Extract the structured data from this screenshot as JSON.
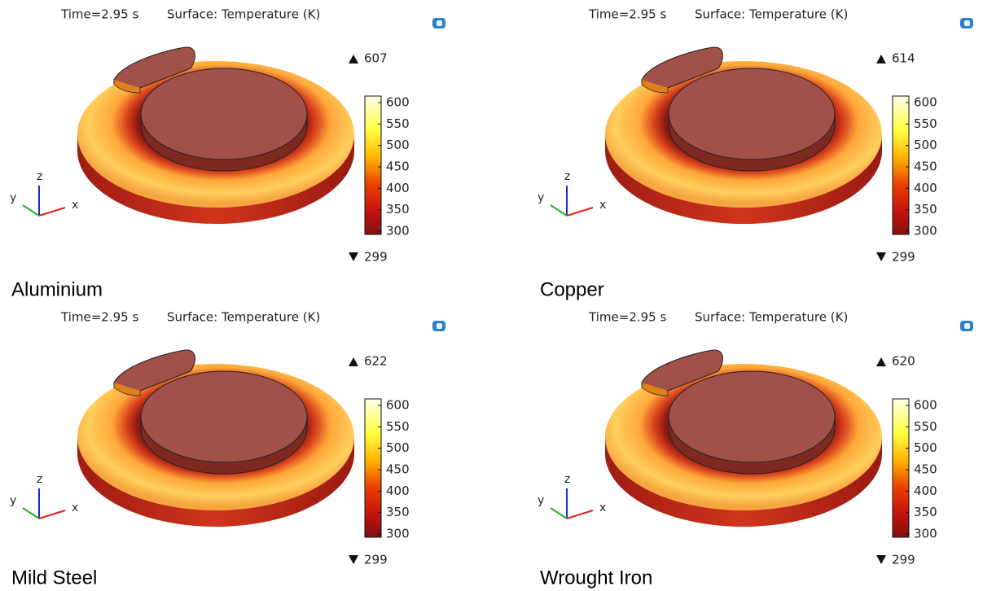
{
  "panels": [
    {
      "title_time": "Time=2.95 s",
      "title_quantity": "Surface: Temperature (K)",
      "max": 607,
      "min": 299,
      "colorbar_ticks": [
        600,
        550,
        500,
        450,
        400,
        350,
        300
      ],
      "axis_labels": [
        "z",
        "y",
        "x"
      ],
      "caption": "Aluminium"
    },
    {
      "title_time": "Time=2.95 s",
      "title_quantity": "Surface: Temperature (K)",
      "max": 614,
      "min": 299,
      "colorbar_ticks": [
        600,
        550,
        500,
        450,
        400,
        350,
        300
      ],
      "axis_labels": [
        "z",
        "y",
        "x"
      ],
      "caption": "Copper"
    },
    {
      "title_time": "Time=2.95 s",
      "title_quantity": "Surface: Temperature (K)",
      "max": 622,
      "min": 299,
      "colorbar_ticks": [
        600,
        550,
        500,
        450,
        400,
        350,
        300
      ],
      "axis_labels": [
        "z",
        "y",
        "x"
      ],
      "caption": "Mild Steel"
    },
    {
      "title_time": "Time=2.95 s",
      "title_quantity": "Surface: Temperature (K)",
      "max": 620,
      "min": 299,
      "colorbar_ticks": [
        600,
        550,
        500,
        450,
        400,
        350,
        300
      ],
      "axis_labels": [
        "z",
        "y",
        "x"
      ],
      "caption": "Wrought Iron"
    }
  ]
}
